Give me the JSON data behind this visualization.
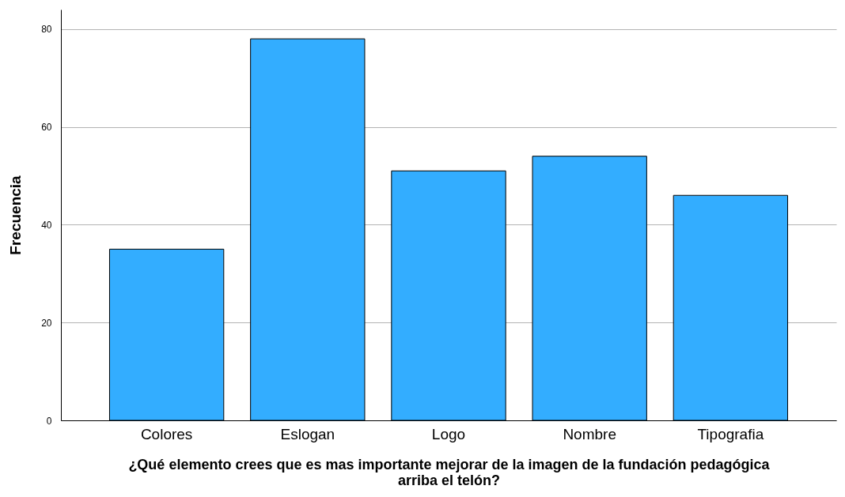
{
  "chart_data": {
    "type": "bar",
    "categories": [
      "Colores",
      "Eslogan",
      "Logo",
      "Nombre",
      "Tipografia"
    ],
    "values": [
      35,
      78,
      51,
      54,
      46
    ],
    "color": "#33adff",
    "xlabel": "¿Qué elemento crees que es mas importante  mejorar de la imagen de la fundación pedagógica\narriba el telón?",
    "ylabel": "Frecuencia",
    "ylim": [
      0,
      84
    ],
    "yticks": [
      0,
      20,
      40,
      60,
      80
    ],
    "grid": "y"
  }
}
